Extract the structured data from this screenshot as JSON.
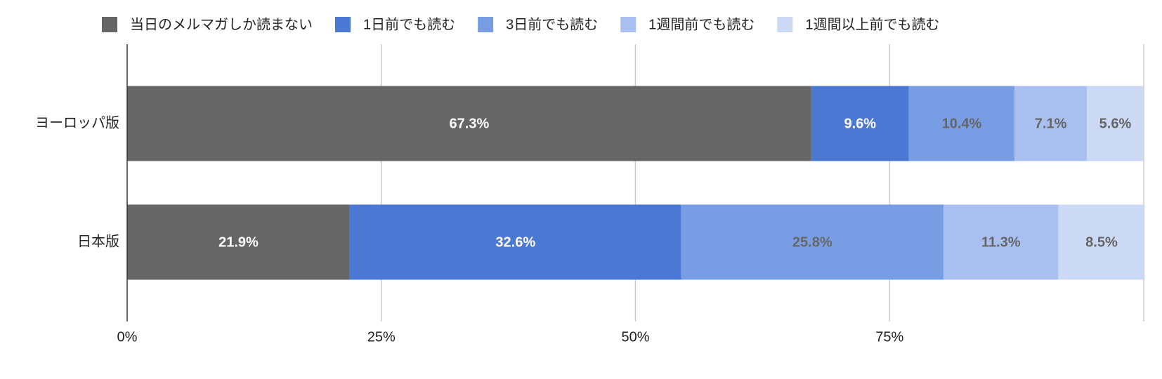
{
  "chart_data": {
    "type": "stacked_hbar",
    "categories": [
      "ヨーロッパ版",
      "日本版"
    ],
    "series": [
      {
        "name": "当日のメルマガしか読まない",
        "color": "#666666",
        "label_color": "#ffffff",
        "values": [
          67.3,
          21.9
        ],
        "value_labels": [
          "67.3%",
          "21.9%"
        ]
      },
      {
        "name": "1日前でも読む",
        "color": "#4a78d3",
        "label_color": "#ffffff",
        "values": [
          9.6,
          32.6
        ],
        "value_labels": [
          "9.6%",
          "32.6%"
        ]
      },
      {
        "name": "3日前でも読む",
        "color": "#789de3",
        "label_color": "#666666",
        "values": [
          10.4,
          25.8
        ],
        "value_labels": [
          "10.4%",
          "25.8%"
        ]
      },
      {
        "name": "1週間前でも読む",
        "color": "#a9bff0",
        "label_color": "#666666",
        "values": [
          7.1,
          11.3
        ],
        "value_labels": [
          "7.1%",
          "11.3%"
        ]
      },
      {
        "name": "1週間以上前でも読む",
        "color": "#cbd9f5",
        "label_color": "#666666",
        "values": [
          5.6,
          8.5
        ],
        "value_labels": [
          "5.6%",
          "8.5%"
        ]
      }
    ],
    "xlim": [
      0,
      100
    ],
    "xticks": [
      {
        "value": 0,
        "label": "0%"
      },
      {
        "value": 25,
        "label": "25%"
      },
      {
        "value": 50,
        "label": "50%"
      },
      {
        "value": 75,
        "label": "75%"
      }
    ],
    "grid": true,
    "legend": "top"
  }
}
